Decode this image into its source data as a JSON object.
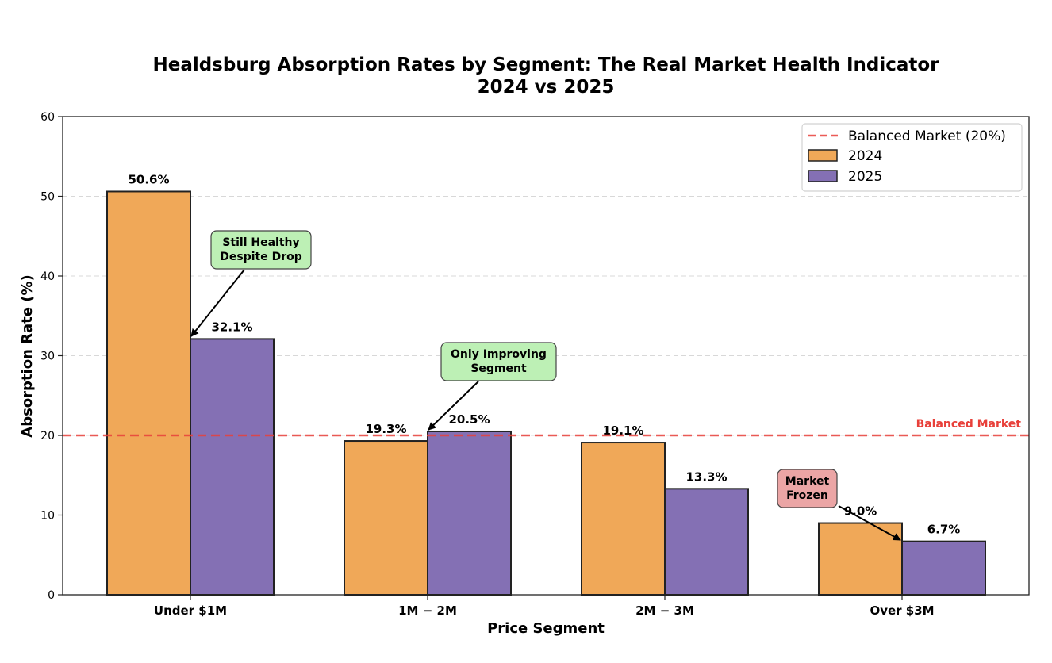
{
  "chart_data": {
    "type": "bar",
    "title": "Healdsburg Absorption Rates by Segment: The Real Market Health Indicator",
    "subtitle": "2024 vs 2025",
    "xlabel": "Price Segment",
    "ylabel": "Absorption Rate (%)",
    "ylim": [
      0,
      60
    ],
    "yticks": [
      0,
      10,
      20,
      30,
      40,
      50,
      60
    ],
    "grid": "y-dashed",
    "categories": [
      "Under $1M",
      "$1M-$2M",
      "$2M-$3M",
      "Over $3M"
    ],
    "category_display": [
      "Under $1M",
      "1M − 2M",
      "2M − 3M",
      "Over $3M"
    ],
    "series": [
      {
        "name": "2024",
        "color": "#F0A858",
        "values": [
          50.6,
          19.3,
          19.1,
          9.0
        ],
        "labels": [
          "50.6%",
          "19.3%",
          "19.1%",
          "9.0%"
        ]
      },
      {
        "name": "2025",
        "color": "#8470B4",
        "values": [
          32.1,
          20.5,
          13.3,
          6.7
        ],
        "labels": [
          "32.1%",
          "20.5%",
          "13.3%",
          "6.7%"
        ]
      }
    ],
    "reference_line": {
      "value": 20,
      "label": "Balanced Market",
      "legend_label": "Balanced Market (20%)",
      "color": "#E8403A",
      "style": "dashed"
    },
    "legend": {
      "placement": "top-right",
      "entries": [
        "Balanced Market (20%)",
        "2024",
        "2025"
      ]
    },
    "annotations": [
      {
        "lines": [
          "Still Healthy",
          "Despite Drop"
        ],
        "category": 0,
        "series": 1,
        "box_color": "#BDF0B5"
      },
      {
        "lines": [
          "Only Improving",
          "Segment"
        ],
        "category": 1,
        "series": 1,
        "box_color": "#BDF0B5"
      },
      {
        "lines": [
          "Market",
          "Frozen"
        ],
        "category": 3,
        "series": 1,
        "box_color": "#EBA5A5"
      }
    ]
  }
}
